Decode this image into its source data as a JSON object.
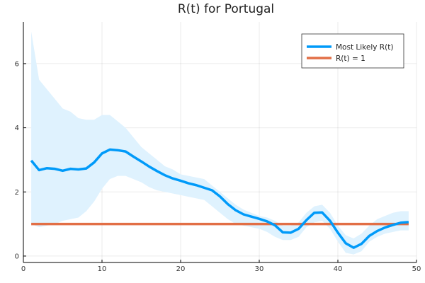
{
  "chart_data": {
    "type": "line",
    "title": "R(t) for Portugal",
    "xlabel": "",
    "ylabel": "",
    "xlim": [
      0,
      50
    ],
    "ylim": [
      -0.2,
      7.3
    ],
    "xticks": [
      0,
      10,
      20,
      30,
      40,
      50
    ],
    "yticks": [
      0,
      2,
      4,
      6
    ],
    "grid": true,
    "legend_position": "top-right",
    "colors": {
      "most_likely": "#009af9",
      "band": "#dff2fe",
      "r_one": "#e26f46"
    },
    "band": {
      "x": [
        1,
        2,
        3,
        4,
        5,
        6,
        7,
        8,
        9,
        10,
        11,
        12,
        13,
        14,
        15,
        16,
        17,
        18,
        19,
        20,
        21,
        22,
        23,
        24,
        25,
        26,
        27,
        28,
        29,
        30,
        31,
        32,
        33,
        34,
        35,
        36,
        37,
        38,
        39,
        40,
        41,
        42,
        43,
        44,
        45,
        46,
        47,
        48,
        49
      ],
      "upper": [
        7.0,
        5.5,
        5.2,
        4.9,
        4.6,
        4.5,
        4.3,
        4.25,
        4.25,
        4.4,
        4.4,
        4.2,
        4.0,
        3.7,
        3.4,
        3.2,
        3.0,
        2.8,
        2.7,
        2.55,
        2.5,
        2.45,
        2.4,
        2.2,
        2.0,
        1.8,
        1.6,
        1.45,
        1.35,
        1.25,
        1.2,
        1.1,
        0.95,
        0.95,
        1.05,
        1.35,
        1.55,
        1.6,
        1.35,
        0.95,
        0.65,
        0.55,
        0.7,
        0.95,
        1.15,
        1.25,
        1.35,
        1.4,
        1.4
      ],
      "lower": [
        1.0,
        0.9,
        0.95,
        1.0,
        1.1,
        1.15,
        1.2,
        1.4,
        1.7,
        2.1,
        2.4,
        2.5,
        2.5,
        2.4,
        2.3,
        2.15,
        2.05,
        2.0,
        1.95,
        1.9,
        1.85,
        1.8,
        1.75,
        1.55,
        1.35,
        1.15,
        1.0,
        0.95,
        0.9,
        0.85,
        0.75,
        0.6,
        0.5,
        0.5,
        0.6,
        0.9,
        1.05,
        1.1,
        0.85,
        0.45,
        0.1,
        0.05,
        0.15,
        0.45,
        0.6,
        0.7,
        0.75,
        0.8,
        0.8
      ]
    },
    "series": [
      {
        "name": "Most Likely R(t)",
        "x": [
          1,
          2,
          3,
          4,
          5,
          6,
          7,
          8,
          9,
          10,
          11,
          12,
          13,
          14,
          15,
          16,
          17,
          18,
          19,
          20,
          21,
          22,
          23,
          24,
          25,
          26,
          27,
          28,
          29,
          30,
          31,
          32,
          33,
          34,
          35,
          36,
          37,
          38,
          39,
          40,
          41,
          42,
          43,
          44,
          45,
          46,
          47,
          48,
          49
        ],
        "values": [
          2.98,
          2.68,
          2.74,
          2.72,
          2.66,
          2.72,
          2.7,
          2.73,
          2.92,
          3.2,
          3.32,
          3.3,
          3.26,
          3.1,
          2.95,
          2.79,
          2.65,
          2.52,
          2.42,
          2.35,
          2.27,
          2.21,
          2.13,
          2.05,
          1.86,
          1.62,
          1.43,
          1.3,
          1.23,
          1.16,
          1.08,
          0.96,
          0.74,
          0.73,
          0.85,
          1.12,
          1.35,
          1.36,
          1.1,
          0.73,
          0.4,
          0.26,
          0.38,
          0.63,
          0.78,
          0.89,
          0.97,
          1.04,
          1.06
        ]
      },
      {
        "name": "R(t) = 1",
        "x": [
          1,
          49
        ],
        "values": [
          1,
          1
        ]
      }
    ]
  }
}
